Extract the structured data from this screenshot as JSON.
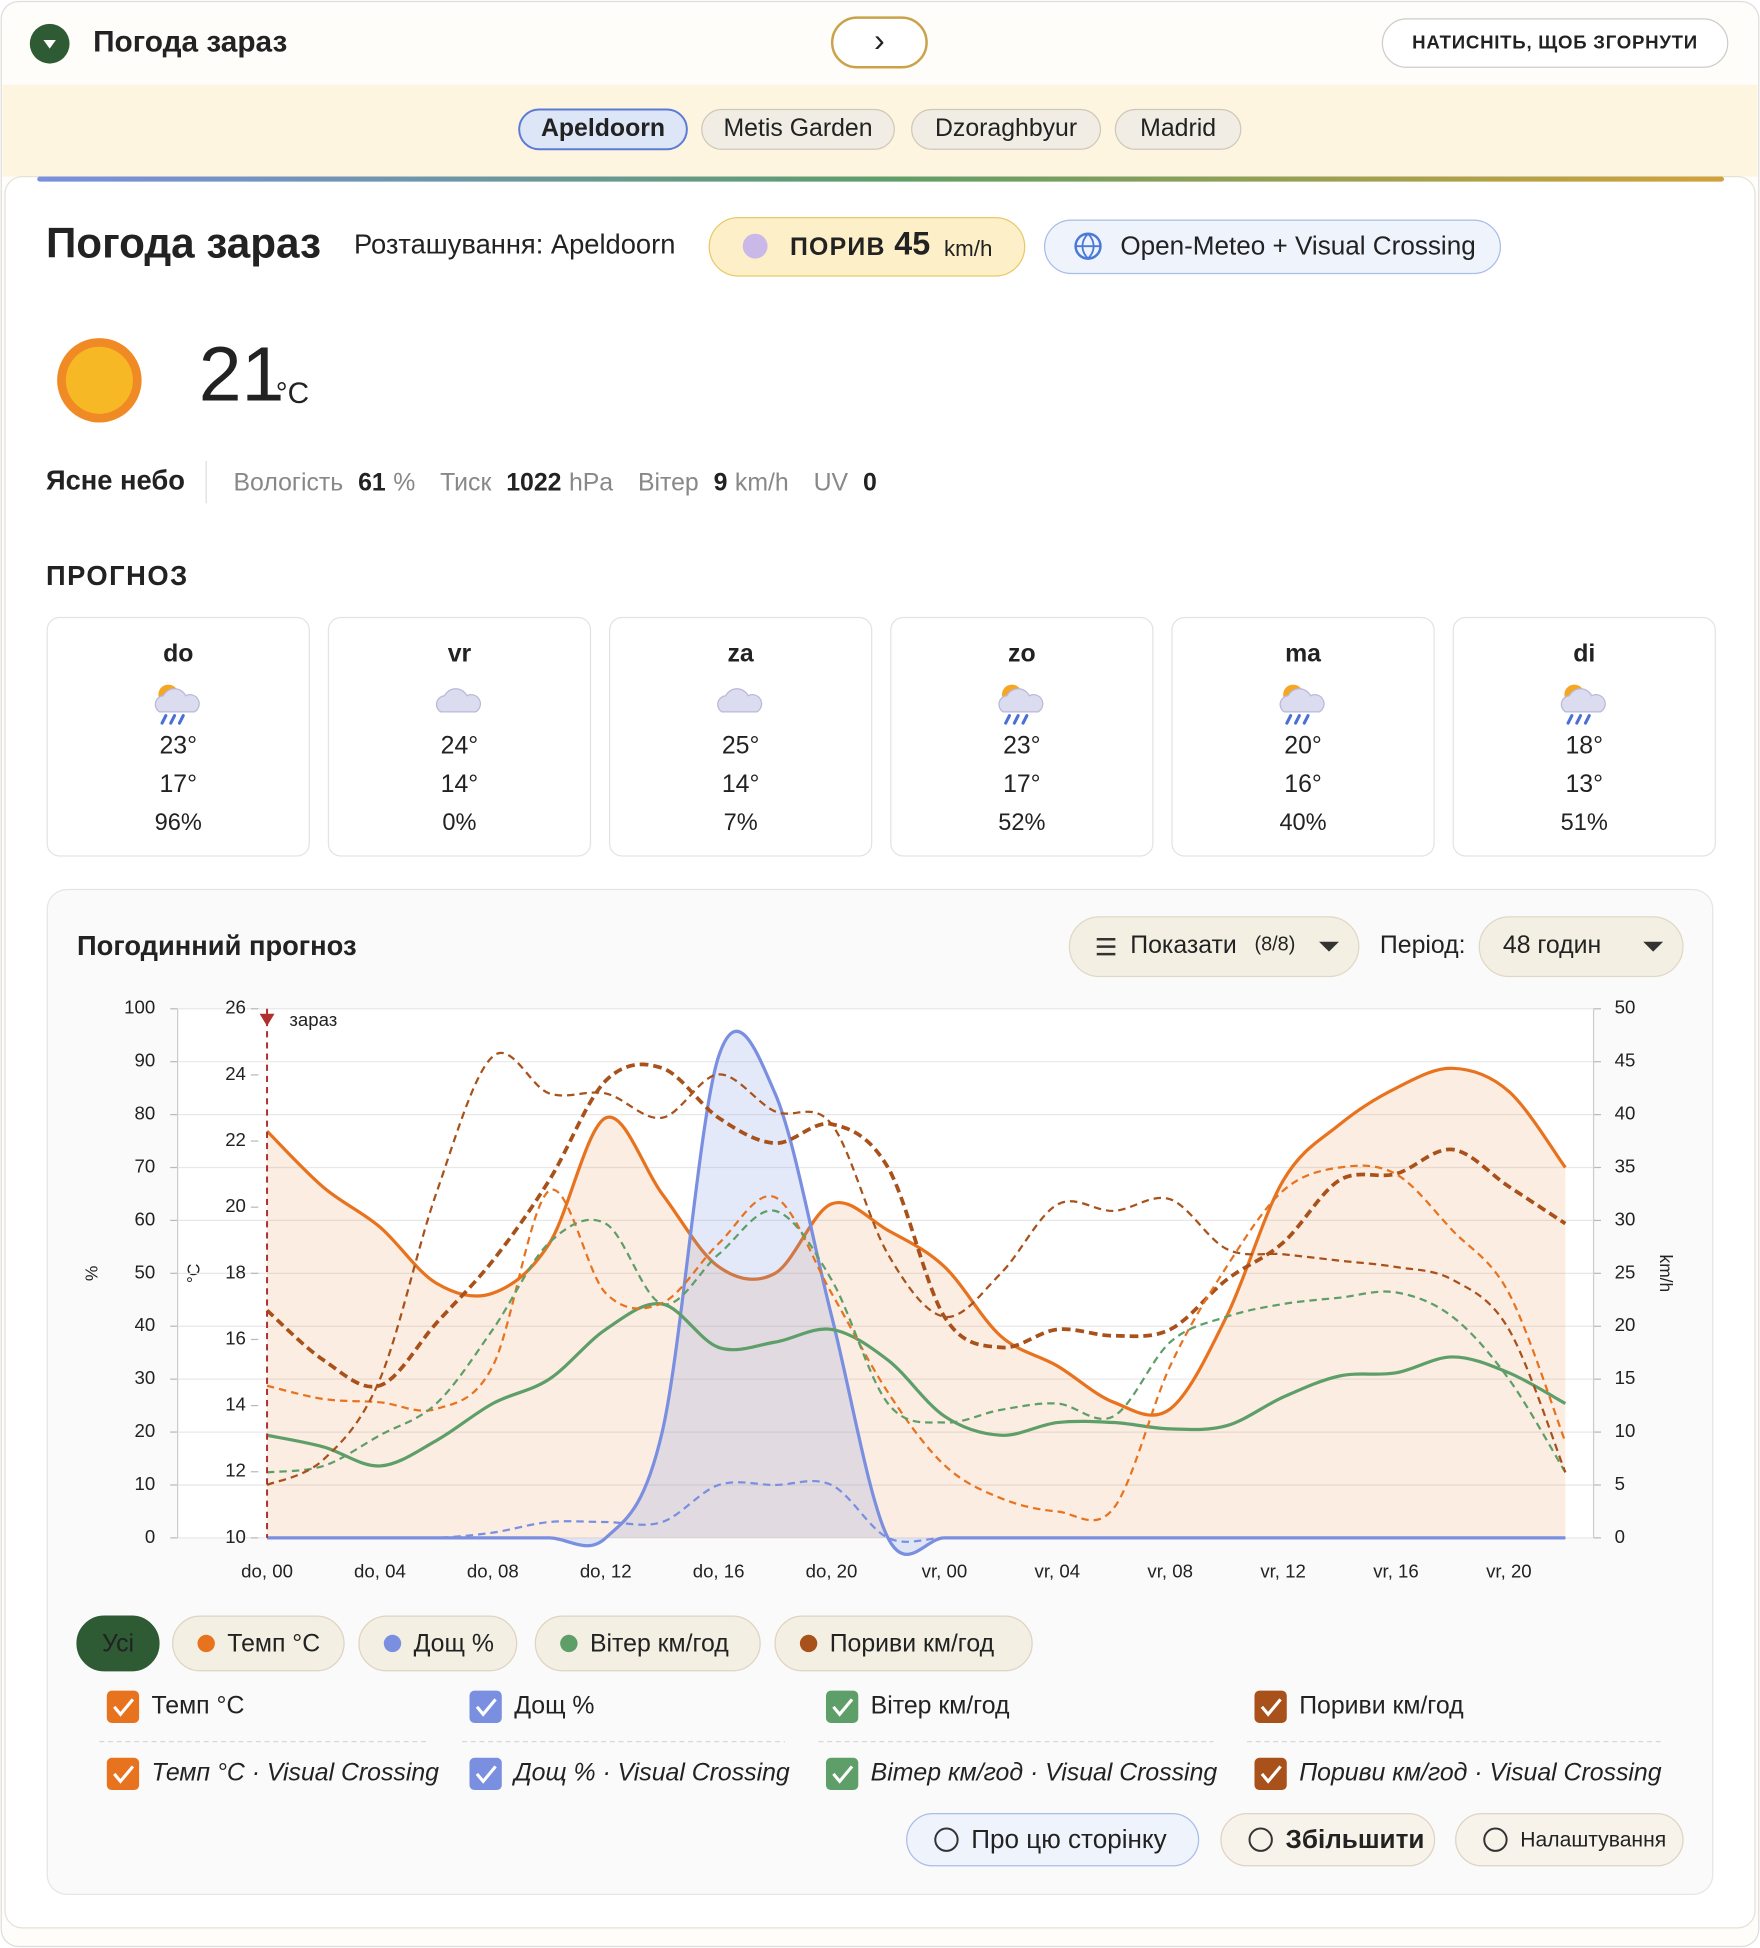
{
  "header": {
    "title": "Погода зараз",
    "next": "›",
    "collapse": "НАТИСНІТЬ, ЩОБ ЗГОРНУТИ"
  },
  "tabs": [
    "Apeldoorn",
    "Metis Garden",
    "Dzoraghbyur",
    "Madrid"
  ],
  "active_tab": 0,
  "current": {
    "title": "Погода зараз",
    "location": "Розташування: Apeldoorn",
    "gust_label": "ПОРИВ",
    "gust": "45",
    "gust_unit": "km/h",
    "source": "Open-Meteo + Visual Crossing",
    "temp": "21",
    "temp_unit": "°C",
    "condition": "Ясне небо",
    "humidity_label": "Вологість",
    "humidity": "61",
    "humidity_unit": "%",
    "pressure_label": "Тиск",
    "pressure": "1022",
    "pressure_unit": "hPa",
    "wind_label": "Вітер",
    "wind": "9",
    "wind_unit": "km/h",
    "uv_label": "UV",
    "uv": "0"
  },
  "forecast": {
    "title": "ПРОГНОЗ",
    "days": [
      {
        "day": "do",
        "icon": "rain",
        "high": "23°",
        "low": "17°",
        "precip": "96%"
      },
      {
        "day": "vr",
        "icon": "cloud",
        "high": "24°",
        "low": "14°",
        "precip": "0%"
      },
      {
        "day": "za",
        "icon": "cloud",
        "high": "25°",
        "low": "14°",
        "precip": "7%"
      },
      {
        "day": "zo",
        "icon": "rain",
        "high": "23°",
        "low": "17°",
        "precip": "52%"
      },
      {
        "day": "ma",
        "icon": "rain",
        "high": "20°",
        "low": "16°",
        "precip": "40%"
      },
      {
        "day": "di",
        "icon": "rain",
        "high": "18°",
        "low": "13°",
        "precip": "51%"
      }
    ]
  },
  "hourly": {
    "title": "Погодинний прогноз",
    "show": "Показати",
    "show_count": "(8/8)",
    "period_label": "Період:",
    "period": "48 годин"
  },
  "chart_data": {
    "type": "line",
    "annotation": "зараз",
    "ylabel": "%",
    "y2label": "°C",
    "y3label": "km/h",
    "categories": [
      "do, 00",
      null,
      "do, 04",
      null,
      "do, 08",
      null,
      "do, 12",
      null,
      "do, 16",
      null,
      "do, 20",
      null,
      "vr, 00",
      null,
      "vr, 04",
      null,
      "vr, 08",
      null,
      "vr, 12",
      null,
      "vr, 16",
      null,
      "vr, 20",
      null
    ],
    "ylim": [
      0,
      100
    ],
    "yticks": [
      0,
      10,
      20,
      30,
      40,
      50,
      60,
      70,
      80,
      90,
      100
    ],
    "y2lim": [
      10,
      26
    ],
    "y2ticks": [
      10,
      12,
      14,
      16,
      18,
      20,
      22,
      24,
      26
    ],
    "y3lim": [
      0,
      50
    ],
    "y3ticks": [
      0,
      5,
      10,
      15,
      20,
      25,
      30,
      35,
      40,
      45,
      50
    ],
    "grid": true,
    "series": [
      {
        "name": "Темп °C",
        "color": "#e8731f",
        "axis": "y2",
        "dashed": false,
        "area": true,
        "values": [
          22.3,
          20.6,
          19.4,
          17.7,
          17.4,
          18.9,
          22.7,
          20.4,
          18.2,
          18.0,
          20.1,
          19.3,
          18.2,
          16.1,
          15.2,
          14.1,
          13.9,
          16.7,
          20.8,
          22.5,
          23.6,
          24.2,
          23.5,
          21.2
        ]
      },
      {
        "name": "Дощ %",
        "color": "#7a8fe0",
        "axis": "y",
        "dashed": false,
        "area": true,
        "values": [
          0,
          0,
          0,
          0,
          0,
          0,
          0,
          20,
          91,
          84,
          42,
          0,
          0,
          0,
          0,
          0,
          0,
          0,
          0,
          0,
          0,
          0,
          0,
          0
        ]
      },
      {
        "name": "Вітер км/год",
        "color": "#5e9e68",
        "axis": "y3",
        "dashed": false,
        "area": false,
        "values": [
          9.7,
          8.6,
          6.8,
          9.2,
          12.7,
          15.0,
          19.7,
          22.1,
          18.0,
          18.5,
          19.7,
          16.8,
          11.5,
          9.7,
          10.9,
          10.9,
          10.3,
          10.6,
          13.3,
          15.3,
          15.6,
          17.1,
          15.6,
          12.7
        ]
      },
      {
        "name": "Пориви км/год",
        "color": "#a8511a",
        "axis": "y3",
        "dashed": true,
        "area": false,
        "values": [
          21.5,
          16.8,
          14.4,
          20.3,
          26.2,
          33.8,
          43.2,
          44.4,
          39.7,
          37.3,
          39.1,
          35.0,
          20.9,
          18.0,
          19.7,
          19.1,
          19.7,
          24.4,
          27.9,
          33.8,
          34.4,
          36.7,
          33.2,
          29.7
        ]
      },
      {
        "name": "Темп °C · Visual Crossing",
        "color": "#e8731f",
        "axis": "y2",
        "dashed": true,
        "area": false,
        "values": [
          14.6,
          14.2,
          14.1,
          13.9,
          15.2,
          20.5,
          17.4,
          17.1,
          18.9,
          20.3,
          17.4,
          14.4,
          12.2,
          11.2,
          10.8,
          10.9,
          15.2,
          18.2,
          20.5,
          21.2,
          21.0,
          19.3,
          17.4,
          12.9
        ]
      },
      {
        "name": "Дощ % · Visual Crossing",
        "color": "#7a8fe0",
        "axis": "y",
        "dashed": true,
        "area": false,
        "values": [
          0,
          0,
          0,
          0,
          1,
          3,
          3,
          3,
          10,
          10,
          10,
          0,
          0,
          0,
          0,
          0,
          0,
          0,
          0,
          0,
          0,
          0,
          0,
          0
        ]
      },
      {
        "name": "Вітер км/год · Visual Crossing",
        "color": "#5e9e68",
        "axis": "y3",
        "dashed": true,
        "area": false,
        "values": [
          6.2,
          6.8,
          9.7,
          12.7,
          19.7,
          27.9,
          29.7,
          22.1,
          26.8,
          30.9,
          24.4,
          12.7,
          10.9,
          12.1,
          12.7,
          11.5,
          18.5,
          20.9,
          22.1,
          22.7,
          23.2,
          20.9,
          15.0,
          6.2
        ]
      },
      {
        "name": "Пориви км/год · Visual Crossing",
        "color": "#a8511a",
        "axis": "y3",
        "dashed": true,
        "area": false,
        "values": [
          5.0,
          7.4,
          15.0,
          32.6,
          45.5,
          42.0,
          42.0,
          39.7,
          43.8,
          40.3,
          39.1,
          26.8,
          20.9,
          25.0,
          31.5,
          30.9,
          32.0,
          27.3,
          26.8,
          26.2,
          25.6,
          24.4,
          19.7,
          6.2
        ]
      }
    ]
  },
  "filters": [
    {
      "label": "Усі",
      "color": null
    },
    {
      "label": "Темп °C",
      "color": "#e8731f"
    },
    {
      "label": "Дощ %",
      "color": "#7a8fe0"
    },
    {
      "label": "Вітер км/год",
      "color": "#5e9e68"
    },
    {
      "label": "Пориви км/год",
      "color": "#a8511a"
    }
  ],
  "buttons": [
    "Про цю сторінку",
    "Збільшити",
    "Налаштування"
  ]
}
